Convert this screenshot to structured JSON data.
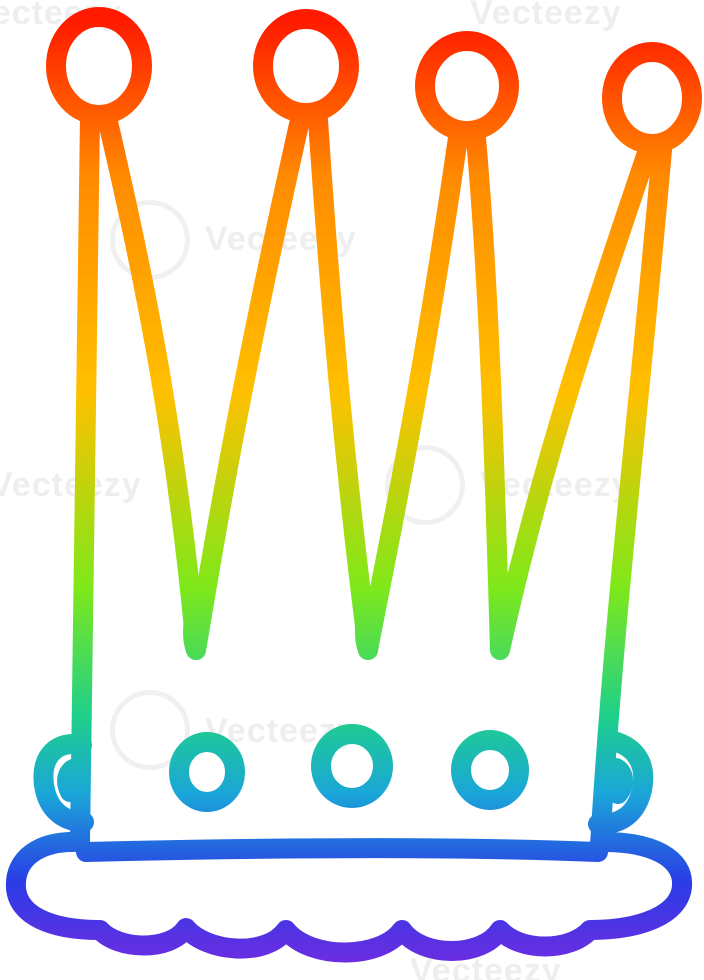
{
  "image": {
    "subject": "crown-line-drawing",
    "stroke_gradient": [
      "#ff1a00",
      "#ff8a00",
      "#ffc000",
      "#7ee81a",
      "#1fd08a",
      "#1aa6d8",
      "#2a3ce6",
      "#7a2ae0"
    ]
  },
  "watermark": {
    "text": "Vecteezy"
  }
}
